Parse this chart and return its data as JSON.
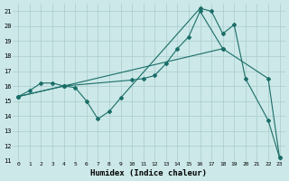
{
  "xlabel": "Humidex (Indice chaleur)",
  "xlim": [
    -0.5,
    23.5
  ],
  "ylim": [
    11,
    21.5
  ],
  "yticks": [
    11,
    12,
    13,
    14,
    15,
    16,
    17,
    18,
    19,
    20,
    21
  ],
  "xticks": [
    0,
    1,
    2,
    3,
    4,
    5,
    6,
    7,
    8,
    9,
    10,
    11,
    12,
    13,
    14,
    15,
    16,
    17,
    18,
    19,
    20,
    21,
    22,
    23
  ],
  "bg_color": "#cce8e8",
  "grid_color": "#aacccc",
  "line_color": "#1a6e68",
  "series": [
    {
      "comment": "upper spread line: 0->15.3, 4->16.0, 16->21.0, 18->18.5 (goes up and plateau)",
      "x": [
        0,
        4,
        10,
        11,
        12,
        13,
        14,
        15,
        16,
        18
      ],
      "y": [
        15.3,
        16.0,
        16.4,
        16.5,
        16.7,
        17.5,
        18.5,
        19.3,
        21.0,
        18.5
      ]
    },
    {
      "comment": "zigzag line: 0->15.3, 1->15.7, 2->16.2, 3->16.2, 4->16.0, 5->15.9, 6->15.0, 7->13.8, 8->14.3, 9->15.2, 16->21.2, 17->21.0, 18->19.5, 19->20.1, 20->16.5, 22->13.7, 23->11.2",
      "x": [
        0,
        1,
        2,
        3,
        4,
        5,
        6,
        7,
        8,
        9,
        16,
        17,
        18,
        19,
        20,
        22,
        23
      ],
      "y": [
        15.3,
        15.7,
        16.2,
        16.2,
        16.0,
        15.9,
        15.0,
        13.8,
        14.3,
        15.2,
        21.2,
        21.0,
        19.5,
        20.1,
        16.5,
        13.7,
        11.2
      ]
    },
    {
      "comment": "bottom envelope: 0->15.3, 4->16.0, 18->18.5, 22->16.5, 23->11.2",
      "x": [
        0,
        4,
        18,
        22,
        23
      ],
      "y": [
        15.3,
        16.0,
        18.5,
        16.5,
        11.2
      ]
    }
  ]
}
